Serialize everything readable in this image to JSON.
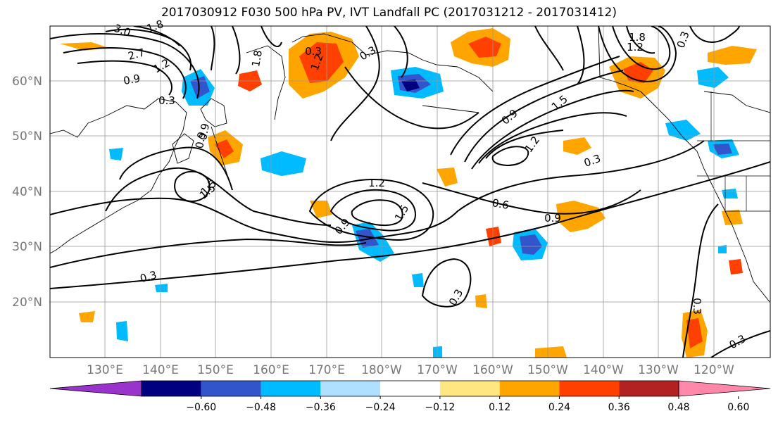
{
  "title": "2017030912 F030 500 hPa PV, IVT Landfall PC (2017031212 - 2017031412)",
  "lat_labels": [
    "20°N",
    "30°N",
    "40°N",
    "50°N",
    "60°N"
  ],
  "lon_labels": [
    "130°E",
    "140°E",
    "150°E",
    "160°E",
    "170°E",
    "180°W",
    "170°W",
    "160°W",
    "150°W",
    "140°W",
    "130°W",
    "120°W"
  ],
  "colorbar": {
    "ticks": [
      "−0.60",
      "−0.48",
      "−0.36",
      "−0.24",
      "−0.12",
      "0.12",
      "0.24",
      "0.36",
      "0.48",
      "0.60"
    ],
    "colors": [
      "#9933cc",
      "#000080",
      "#3355cc",
      "#00bbff",
      "#b0e0ff",
      "#ffffff",
      "#ffe680",
      "#ffa500",
      "#ff4000",
      "#b22222",
      "#ff88aa"
    ]
  },
  "contour_labels": [
    "3.0",
    "1.8",
    "2.7",
    "0.9",
    "1.2",
    "0.3",
    "1.8",
    "0.9",
    "1.2",
    "1.5",
    "0.3",
    "1.2",
    "1.5",
    "0.9",
    "0.6",
    "0.9",
    "0.3",
    "0.3",
    "0.3",
    "1.8",
    "1.2",
    "1.5",
    "0.9",
    "1.2",
    "0.3",
    "0.3",
    "0.3",
    "0.9",
    "0.3",
    "1.5"
  ]
}
